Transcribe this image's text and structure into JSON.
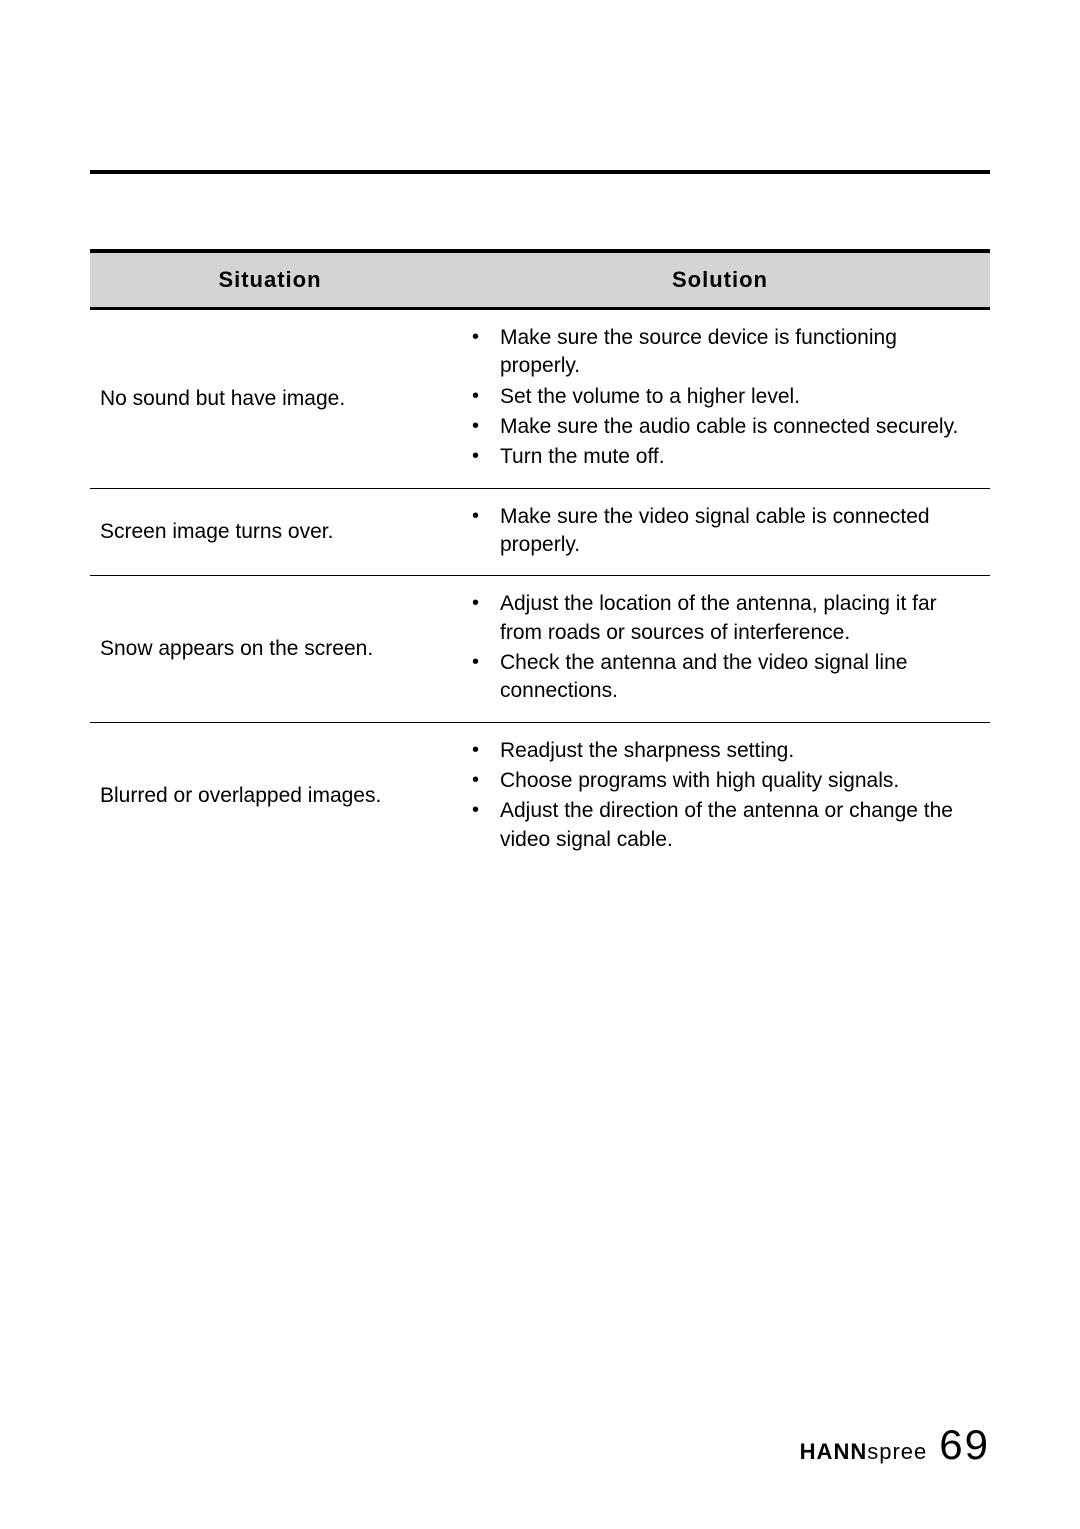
{
  "table": {
    "headers": {
      "situation": "Situation",
      "solution": "Solution"
    },
    "rows": [
      {
        "situation": "No sound but have image.",
        "solutions": [
          "Make sure the source device is functioning properly.",
          "Set the volume to a higher level.",
          "Make sure the audio cable is connected securely.",
          "Turn the mute off."
        ]
      },
      {
        "situation": "Screen image turns over.",
        "solutions": [
          "Make sure the video signal cable is connected properly."
        ]
      },
      {
        "situation": "Snow appears on the screen.",
        "solutions": [
          "Adjust the location of the antenna, placing it far from roads or sources of interference.",
          "Check the antenna and the video signal line connections."
        ]
      },
      {
        "situation": "Blurred or overlapped images.",
        "solutions": [
          "Readjust the sharpness setting.",
          "Choose programs with high quality signals.",
          "Adjust the direction of the antenna or change the video signal cable."
        ]
      }
    ]
  },
  "footer": {
    "brand_bold": "HANN",
    "brand_light": "spree",
    "page_number": "69"
  },
  "colors": {
    "header_bg": "#d4d4d4",
    "border": "#000000",
    "text": "#000000",
    "background": "#ffffff"
  }
}
